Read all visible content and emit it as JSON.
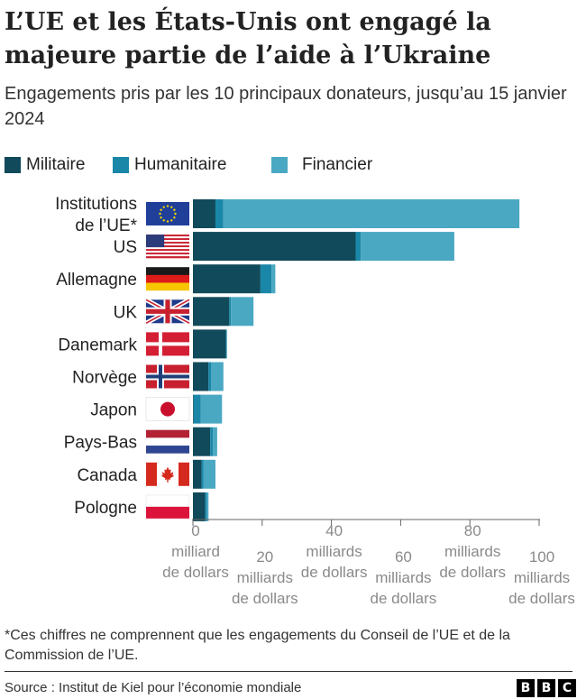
{
  "title": "L’UE et les États-Unis ont engagé la majeure partie de l’aide à l’Ukraine",
  "subtitle": "Engagements pris par les 10 principaux donateurs, jusqu’au 15 janvier 2024",
  "footnote": "*Ces chiffres ne comprennent que les engagements du Conseil de l’UE et de la Commission de l’UE.",
  "source": "Source : Institut de Kiel pour l’économie mondiale",
  "logo": {
    "letters": [
      "B",
      "B",
      "C"
    ]
  },
  "colors": {
    "militaire": "#114a5a",
    "humanitaire": "#1a87a8",
    "financier": "#4aa8c2"
  },
  "legend": [
    {
      "label": "Militaire",
      "color": "#114a5a"
    },
    {
      "label": "Humanitaire",
      "color": "#1a87a8"
    },
    {
      "label": "Financier",
      "color": "#4aa8c2"
    }
  ],
  "chart_data": {
    "type": "bar",
    "orientation": "horizontal",
    "stacked": true,
    "categories": [
      [
        "Institutions",
        "de l’UE*"
      ],
      [
        "US"
      ],
      [
        "Allemagne"
      ],
      [
        "UK"
      ],
      [
        "Danemark"
      ],
      [
        "Norvège"
      ],
      [
        "Japon"
      ],
      [
        "Pays-Bas"
      ],
      [
        "Canada"
      ],
      [
        "Pologne"
      ]
    ],
    "flags": [
      "eu-flag",
      "us-flag",
      "germany-flag",
      "uk-flag",
      "denmark-flag",
      "norway-flag",
      "japan-flag",
      "netherlands-flag",
      "canada-flag",
      "poland-flag"
    ],
    "series": [
      {
        "name": "Militaire",
        "values": [
          6.5,
          47,
          19.5,
          10.5,
          9.5,
          4.5,
          0.2,
          5,
          2.5,
          3.5
        ]
      },
      {
        "name": "Humanitaire",
        "values": [
          2.3,
          1.5,
          3.2,
          0.5,
          0.3,
          0.8,
          2.0,
          0.8,
          0.5,
          0.5
        ]
      },
      {
        "name": "Financier",
        "values": [
          85.5,
          27,
          1.1,
          6.5,
          0,
          3.5,
          6.2,
          1.2,
          3.5,
          0.5
        ]
      }
    ],
    "xlim": [
      0,
      100
    ],
    "ticks": [
      {
        "value": 0,
        "label": [
          "0",
          "milliard",
          "de dollars"
        ]
      },
      {
        "value": 20,
        "label": [
          "20",
          "milliards",
          "de dollars"
        ]
      },
      {
        "value": 40,
        "label": [
          "40",
          "milliards",
          "de dollars"
        ]
      },
      {
        "value": 60,
        "label": [
          "60",
          "milliards",
          "de dollars"
        ]
      },
      {
        "value": 80,
        "label": [
          "80",
          "milliards",
          "de dollars"
        ]
      },
      {
        "value": 100,
        "label": [
          "100",
          "milliards",
          "de dollars"
        ]
      }
    ],
    "grid": false,
    "legend_position": "top-left"
  }
}
